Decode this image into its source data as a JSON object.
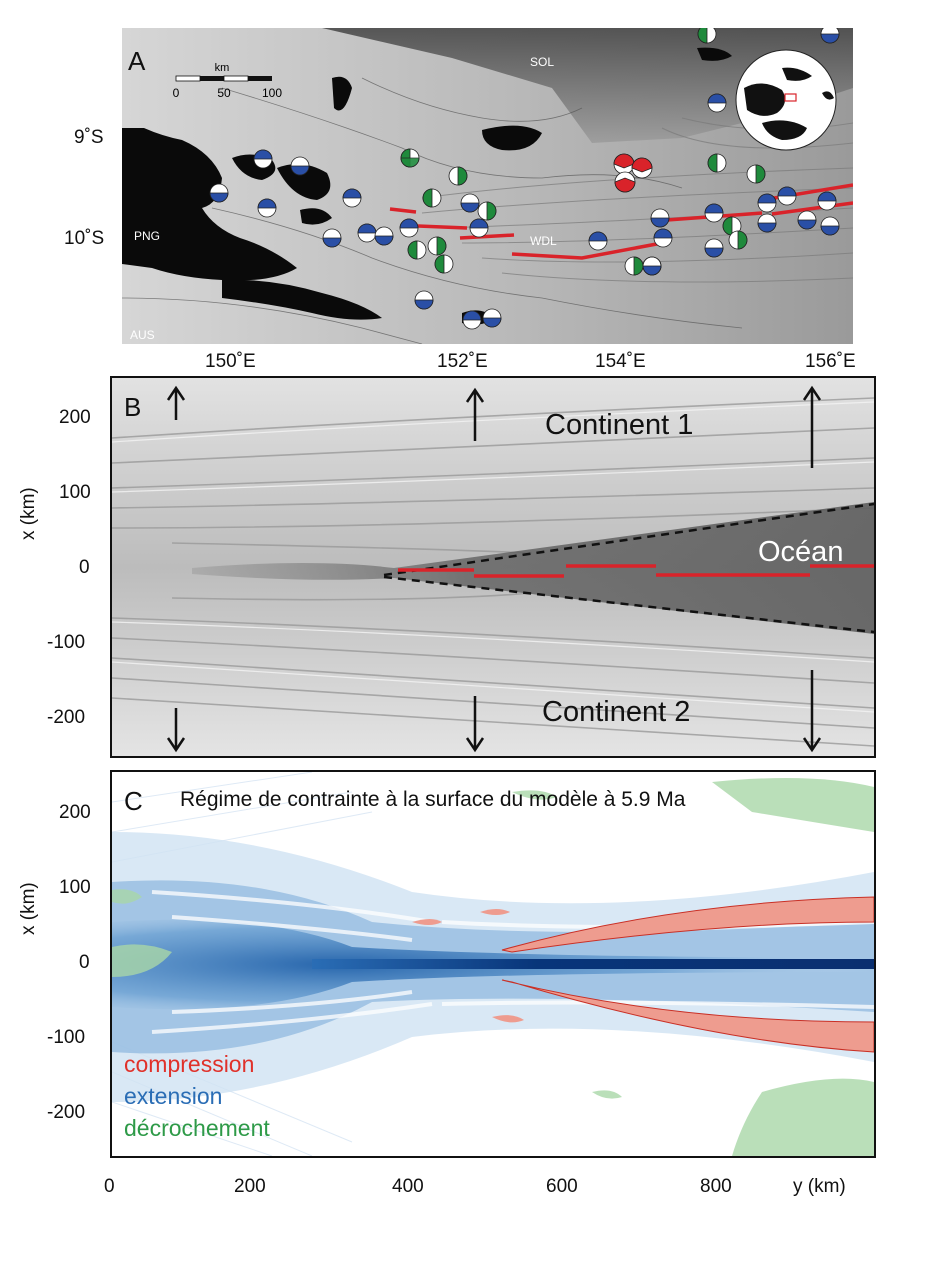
{
  "panelA": {
    "letter": "A",
    "scalebar": {
      "unit": "km",
      "ticks": [
        "0",
        "50",
        "100"
      ]
    },
    "place_labels": [
      "SOL",
      "PNG",
      "WDL",
      "AUS"
    ],
    "lat_labels": [
      "9˚S",
      "10˚S"
    ],
    "lon_labels": [
      "150˚E",
      "152˚E",
      "154˚E",
      "156˚E"
    ]
  },
  "panelB": {
    "letter": "B",
    "continent1": "Continent 1",
    "ocean": "Océan",
    "continent2": "Continent 2"
  },
  "panelC": {
    "letter": "C",
    "title": "Régime de contrainte à la surface du modèle à 5.9 Ma",
    "legend": [
      "compression",
      "extension",
      "décrochement"
    ]
  },
  "axes": {
    "x_label": "x (km)",
    "x_ticks": [
      "200",
      "100",
      "0",
      "-100",
      "-200"
    ],
    "y_ticks": [
      "0",
      "200",
      "400",
      "600",
      "800"
    ],
    "y_label": "y (km)"
  },
  "colors": {
    "compression": "#e0312a",
    "extension": "#2a6db5",
    "decrochement": "#2e9a48",
    "rift": "#d9232a",
    "focal_blue": "#2a4fa6",
    "focal_green": "#1f8a3c"
  }
}
